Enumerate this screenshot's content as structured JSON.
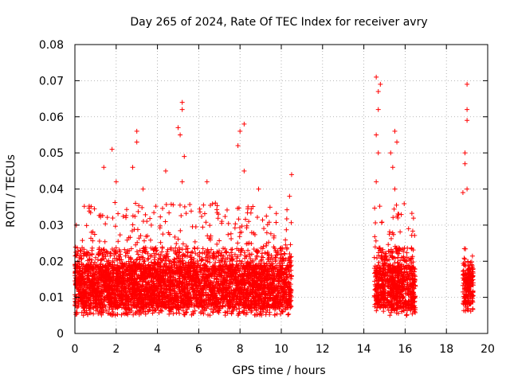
{
  "chart_data": {
    "type": "scatter",
    "title": "Day 265 of 2024, Rate Of TEC Index for receiver avry",
    "xlabel": "GPS time / hours",
    "ylabel": "ROTI / TECUs",
    "xlim": [
      0,
      20
    ],
    "ylim": [
      0,
      0.08
    ],
    "x_ticks": [
      "0",
      "2",
      "4",
      "6",
      "8",
      "10",
      "12",
      "14",
      "16",
      "18",
      "20"
    ],
    "y_ticks": [
      "0",
      "0.01",
      "0.02",
      "0.03",
      "0.04",
      "0.05",
      "0.06",
      "0.07",
      "0.08"
    ],
    "grid": true,
    "marker": "+",
    "series_color": "#ff0000",
    "clusters": [
      {
        "x_range": [
          0,
          10.5
        ],
        "typical_range": [
          0.005,
          0.03
        ]
      },
      {
        "x_range": [
          14.5,
          16.5
        ],
        "typical_range": [
          0.005,
          0.03
        ]
      },
      {
        "x_range": [
          18.8,
          19.3
        ],
        "typical_range": [
          0.006,
          0.02
        ]
      }
    ],
    "points": [
      {
        "x": 1.4,
        "y": 0.046
      },
      {
        "x": 1.8,
        "y": 0.051
      },
      {
        "x": 2.0,
        "y": 0.042
      },
      {
        "x": 2.8,
        "y": 0.046
      },
      {
        "x": 3.0,
        "y": 0.056
      },
      {
        "x": 3.0,
        "y": 0.053
      },
      {
        "x": 3.3,
        "y": 0.04
      },
      {
        "x": 4.4,
        "y": 0.045
      },
      {
        "x": 5.0,
        "y": 0.057
      },
      {
        "x": 5.1,
        "y": 0.055
      },
      {
        "x": 5.2,
        "y": 0.064
      },
      {
        "x": 5.2,
        "y": 0.062
      },
      {
        "x": 5.3,
        "y": 0.049
      },
      {
        "x": 5.2,
        "y": 0.042
      },
      {
        "x": 6.4,
        "y": 0.042
      },
      {
        "x": 7.9,
        "y": 0.052
      },
      {
        "x": 8.0,
        "y": 0.056
      },
      {
        "x": 8.2,
        "y": 0.058
      },
      {
        "x": 8.2,
        "y": 0.045
      },
      {
        "x": 8.9,
        "y": 0.04
      },
      {
        "x": 10.5,
        "y": 0.044
      },
      {
        "x": 10.4,
        "y": 0.038
      },
      {
        "x": 14.6,
        "y": 0.071
      },
      {
        "x": 14.7,
        "y": 0.067
      },
      {
        "x": 14.8,
        "y": 0.069
      },
      {
        "x": 14.7,
        "y": 0.062
      },
      {
        "x": 14.6,
        "y": 0.055
      },
      {
        "x": 14.7,
        "y": 0.05
      },
      {
        "x": 14.6,
        "y": 0.042
      },
      {
        "x": 15.3,
        "y": 0.05
      },
      {
        "x": 15.4,
        "y": 0.046
      },
      {
        "x": 15.5,
        "y": 0.056
      },
      {
        "x": 15.6,
        "y": 0.053
      },
      {
        "x": 15.5,
        "y": 0.04
      },
      {
        "x": 18.8,
        "y": 0.039
      },
      {
        "x": 18.9,
        "y": 0.05
      },
      {
        "x": 18.9,
        "y": 0.047
      },
      {
        "x": 19.0,
        "y": 0.059
      },
      {
        "x": 19.0,
        "y": 0.062
      },
      {
        "x": 19.0,
        "y": 0.069
      },
      {
        "x": 19.0,
        "y": 0.04
      }
    ]
  }
}
